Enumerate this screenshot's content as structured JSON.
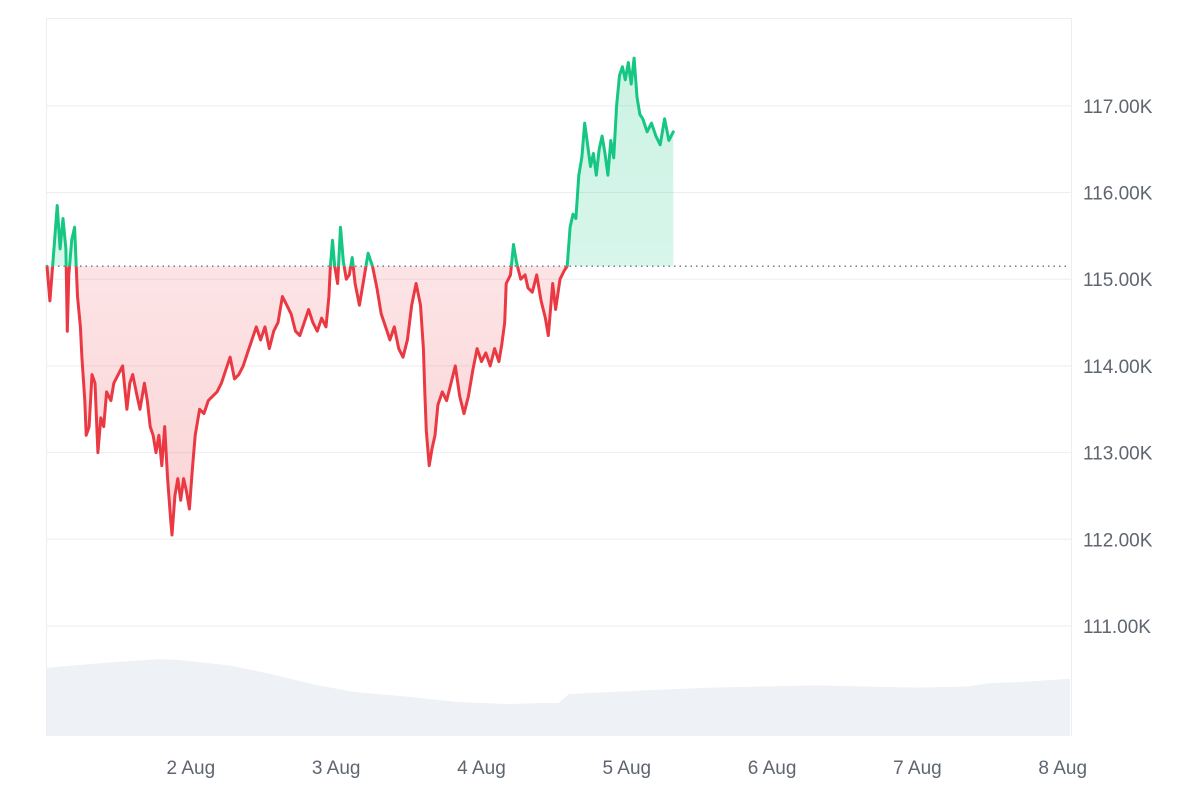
{
  "chart_data": {
    "type": "line",
    "title": "",
    "xlabel": "",
    "ylabel": "",
    "baseline": 115150,
    "ylim": [
      110000,
      118000
    ],
    "grid": true,
    "legend": "none",
    "colors": {
      "up": "#16c784",
      "down": "#ea3943",
      "volume": "#eef1f5",
      "grid": "#eceef1"
    },
    "y_ticks": [
      {
        "value": 111000,
        "label": "111.00K"
      },
      {
        "value": 112000,
        "label": "112.00K"
      },
      {
        "value": 113000,
        "label": "113.00K"
      },
      {
        "value": 114000,
        "label": "114.00K"
      },
      {
        "value": 115000,
        "label": "115.00K"
      },
      {
        "value": 116000,
        "label": "116.00K"
      },
      {
        "value": 117000,
        "label": "117.00K"
      }
    ],
    "x_ticks": [
      {
        "value": 1.5,
        "label": "2 Aug"
      },
      {
        "value": 2.5,
        "label": "3 Aug"
      },
      {
        "value": 3.5,
        "label": "4 Aug"
      },
      {
        "value": 4.5,
        "label": "5 Aug"
      },
      {
        "value": 5.5,
        "label": "6 Aug"
      },
      {
        "value": 6.5,
        "label": "7 Aug"
      },
      {
        "value": 7.5,
        "label": "8 Aug"
      }
    ],
    "xlim": [
      0.51,
      7.55
    ],
    "price": [
      [
        0.51,
        115150
      ],
      [
        0.53,
        114750
      ],
      [
        0.56,
        115400
      ],
      [
        0.58,
        115850
      ],
      [
        0.6,
        115350
      ],
      [
        0.62,
        115700
      ],
      [
        0.64,
        115350
      ],
      [
        0.65,
        114400
      ],
      [
        0.66,
        115050
      ],
      [
        0.68,
        115450
      ],
      [
        0.7,
        115600
      ],
      [
        0.72,
        114800
      ],
      [
        0.74,
        114450
      ],
      [
        0.75,
        114100
      ],
      [
        0.77,
        113600
      ],
      [
        0.78,
        113200
      ],
      [
        0.8,
        113300
      ],
      [
        0.82,
        113900
      ],
      [
        0.84,
        113800
      ],
      [
        0.86,
        113000
      ],
      [
        0.88,
        113400
      ],
      [
        0.9,
        113300
      ],
      [
        0.92,
        113700
      ],
      [
        0.95,
        113600
      ],
      [
        0.97,
        113800
      ],
      [
        1.0,
        113900
      ],
      [
        1.03,
        114000
      ],
      [
        1.06,
        113500
      ],
      [
        1.08,
        113800
      ],
      [
        1.1,
        113900
      ],
      [
        1.13,
        113650
      ],
      [
        1.15,
        113500
      ],
      [
        1.18,
        113800
      ],
      [
        1.2,
        113600
      ],
      [
        1.22,
        113300
      ],
      [
        1.24,
        113200
      ],
      [
        1.26,
        113000
      ],
      [
        1.28,
        113200
      ],
      [
        1.3,
        112850
      ],
      [
        1.32,
        113300
      ],
      [
        1.34,
        112700
      ],
      [
        1.36,
        112250
      ],
      [
        1.37,
        112050
      ],
      [
        1.39,
        112500
      ],
      [
        1.41,
        112700
      ],
      [
        1.43,
        112450
      ],
      [
        1.45,
        112700
      ],
      [
        1.47,
        112550
      ],
      [
        1.49,
        112350
      ],
      [
        1.51,
        112800
      ],
      [
        1.53,
        113200
      ],
      [
        1.56,
        113500
      ],
      [
        1.59,
        113450
      ],
      [
        1.62,
        113600
      ],
      [
        1.65,
        113650
      ],
      [
        1.68,
        113700
      ],
      [
        1.71,
        113800
      ],
      [
        1.74,
        113950
      ],
      [
        1.77,
        114100
      ],
      [
        1.8,
        113850
      ],
      [
        1.83,
        113900
      ],
      [
        1.86,
        114000
      ],
      [
        1.89,
        114150
      ],
      [
        1.92,
        114300
      ],
      [
        1.95,
        114450
      ],
      [
        1.98,
        114300
      ],
      [
        2.01,
        114450
      ],
      [
        2.04,
        114200
      ],
      [
        2.07,
        114400
      ],
      [
        2.1,
        114500
      ],
      [
        2.13,
        114800
      ],
      [
        2.16,
        114700
      ],
      [
        2.19,
        114600
      ],
      [
        2.22,
        114400
      ],
      [
        2.25,
        114350
      ],
      [
        2.28,
        114500
      ],
      [
        2.31,
        114650
      ],
      [
        2.34,
        114500
      ],
      [
        2.37,
        114400
      ],
      [
        2.4,
        114550
      ],
      [
        2.43,
        114450
      ],
      [
        2.45,
        114800
      ],
      [
        2.46,
        115150
      ],
      [
        2.475,
        115450
      ],
      [
        2.49,
        115150
      ],
      [
        2.51,
        114950
      ],
      [
        2.53,
        115600
      ],
      [
        2.55,
        115200
      ],
      [
        2.57,
        115000
      ],
      [
        2.59,
        115050
      ],
      [
        2.61,
        115250
      ],
      [
        2.63,
        114950
      ],
      [
        2.66,
        114700
      ],
      [
        2.69,
        115000
      ],
      [
        2.72,
        115300
      ],
      [
        2.75,
        115150
      ],
      [
        2.78,
        114900
      ],
      [
        2.81,
        114600
      ],
      [
        2.84,
        114450
      ],
      [
        2.87,
        114300
      ],
      [
        2.9,
        114450
      ],
      [
        2.93,
        114200
      ],
      [
        2.96,
        114100
      ],
      [
        2.99,
        114300
      ],
      [
        3.02,
        114700
      ],
      [
        3.05,
        114950
      ],
      [
        3.08,
        114700
      ],
      [
        3.1,
        114200
      ],
      [
        3.11,
        113700
      ],
      [
        3.12,
        113250
      ],
      [
        3.14,
        112850
      ],
      [
        3.16,
        113050
      ],
      [
        3.18,
        113200
      ],
      [
        3.2,
        113550
      ],
      [
        3.23,
        113700
      ],
      [
        3.26,
        113600
      ],
      [
        3.29,
        113800
      ],
      [
        3.32,
        114000
      ],
      [
        3.35,
        113650
      ],
      [
        3.38,
        113450
      ],
      [
        3.41,
        113650
      ],
      [
        3.44,
        113950
      ],
      [
        3.47,
        114200
      ],
      [
        3.5,
        114050
      ],
      [
        3.53,
        114150
      ],
      [
        3.56,
        114000
      ],
      [
        3.59,
        114200
      ],
      [
        3.62,
        114050
      ],
      [
        3.64,
        114250
      ],
      [
        3.66,
        114500
      ],
      [
        3.67,
        114950
      ],
      [
        3.7,
        115050
      ],
      [
        3.72,
        115400
      ],
      [
        3.74,
        115200
      ],
      [
        3.77,
        115000
      ],
      [
        3.8,
        115050
      ],
      [
        3.82,
        114900
      ],
      [
        3.85,
        114850
      ],
      [
        3.88,
        115050
      ],
      [
        3.91,
        114750
      ],
      [
        3.94,
        114550
      ],
      [
        3.96,
        114350
      ],
      [
        3.99,
        114950
      ],
      [
        4.01,
        114650
      ],
      [
        4.04,
        115000
      ],
      [
        4.07,
        115100
      ],
      [
        4.09,
        115150
      ],
      [
        4.11,
        115600
      ],
      [
        4.13,
        115750
      ],
      [
        4.15,
        115700
      ],
      [
        4.17,
        116200
      ],
      [
        4.19,
        116400
      ],
      [
        4.21,
        116800
      ],
      [
        4.23,
        116550
      ],
      [
        4.25,
        116300
      ],
      [
        4.27,
        116450
      ],
      [
        4.29,
        116200
      ],
      [
        4.31,
        116500
      ],
      [
        4.33,
        116650
      ],
      [
        4.35,
        116450
      ],
      [
        4.37,
        116200
      ],
      [
        4.39,
        116600
      ],
      [
        4.41,
        116400
      ],
      [
        4.43,
        117000
      ],
      [
        4.45,
        117350
      ],
      [
        4.47,
        117450
      ],
      [
        4.49,
        117300
      ],
      [
        4.51,
        117500
      ],
      [
        4.53,
        117250
      ],
      [
        4.55,
        117550
      ],
      [
        4.57,
        117100
      ],
      [
        4.59,
        116900
      ],
      [
        4.61,
        116850
      ],
      [
        4.64,
        116700
      ],
      [
        4.67,
        116800
      ],
      [
        4.7,
        116650
      ],
      [
        4.73,
        116550
      ],
      [
        4.76,
        116850
      ],
      [
        4.79,
        116600
      ],
      [
        4.82,
        116700
      ]
    ],
    "volume": [
      [
        0,
        0.62
      ],
      [
        0.05,
        0.66
      ],
      [
        0.08,
        0.68
      ],
      [
        0.11,
        0.7
      ],
      [
        0.13,
        0.69
      ],
      [
        0.18,
        0.64
      ],
      [
        0.22,
        0.56
      ],
      [
        0.26,
        0.47
      ],
      [
        0.3,
        0.4
      ],
      [
        0.35,
        0.36
      ],
      [
        0.4,
        0.31
      ],
      [
        0.45,
        0.29
      ],
      [
        0.48,
        0.3
      ],
      [
        0.5,
        0.3
      ],
      [
        0.51,
        0.38
      ],
      [
        0.55,
        0.4
      ],
      [
        0.6,
        0.42
      ],
      [
        0.65,
        0.44
      ],
      [
        0.7,
        0.45
      ],
      [
        0.75,
        0.46
      ],
      [
        0.8,
        0.45
      ],
      [
        0.85,
        0.44
      ],
      [
        0.9,
        0.45
      ],
      [
        0.92,
        0.48
      ],
      [
        0.95,
        0.49
      ],
      [
        1.0,
        0.52
      ]
    ]
  }
}
